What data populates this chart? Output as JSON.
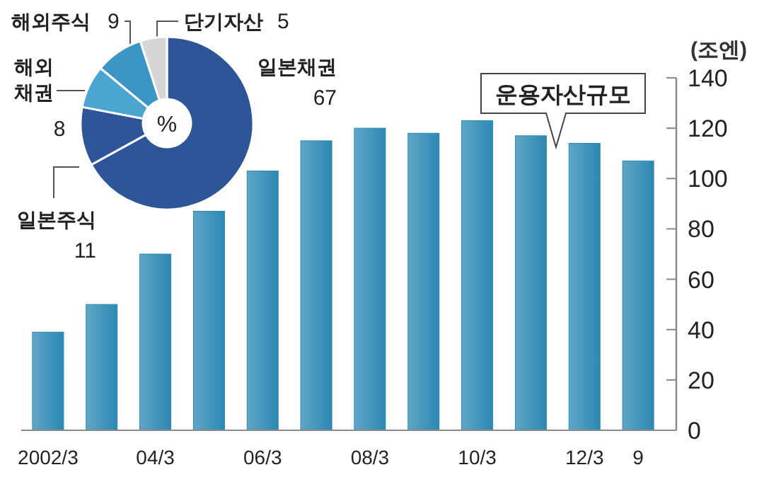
{
  "chart_data": [
    {
      "type": "donut",
      "categories": [
        "일본채권",
        "일본주식",
        "해외채권",
        "해외주식",
        "단기자산"
      ],
      "values": [
        67,
        11,
        8,
        9,
        5
      ],
      "colors": [
        "#2d5597",
        "#2d5597",
        "#4aa5d0",
        "#3b96c6",
        "#d6d6d6"
      ],
      "annotations": [
        "%"
      ],
      "data_labels": true
    },
    {
      "type": "bar",
      "categories": [
        "2002/3",
        null,
        "04/3",
        null,
        "06/3",
        null,
        "08/3",
        null,
        "10/3",
        null,
        "12/3",
        "9"
      ],
      "values": [
        39,
        50,
        70,
        87,
        103,
        115,
        120,
        118,
        123,
        117,
        114,
        107
      ],
      "color": "#2b88b3",
      "ylim": [
        0,
        140
      ],
      "yticks": [
        0,
        20,
        40,
        60,
        80,
        100,
        120,
        140
      ],
      "ylabel": "(조엔)",
      "annotations": [
        "운용자산규모"
      ]
    }
  ]
}
